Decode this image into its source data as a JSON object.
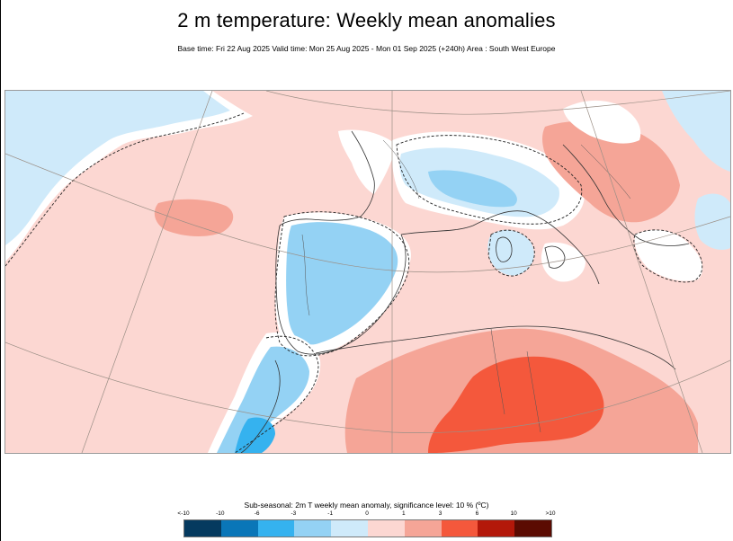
{
  "header": {
    "title": "2 m temperature: Weekly mean anomalies",
    "subtitle": "Base time: Fri 22 Aug 2025 Valid time: Mon 25 Aug 2025 - Mon 01 Sep 2025 (+240h) Area : South West Europe"
  },
  "legend": {
    "caption": "Sub-seasonal: 2m T weekly mean anomaly, significance level: 10 % (ºC)",
    "ticks": [
      "<-10",
      "-10",
      "-6",
      "-3",
      "-1",
      "0",
      "1",
      "3",
      "6",
      "10",
      ">10"
    ],
    "colors": [
      "#053a5f",
      "#0a76b8",
      "#35b2ef",
      "#94d2f4",
      "#cfeafa",
      "#fcd7d2",
      "#f5a597",
      "#f4583c",
      "#b3180a",
      "#5b0b02"
    ]
  },
  "map": {
    "area": "South West Europe",
    "palette": {
      "cold_light": "#cfeafa",
      "cold_mid": "#94d2f4",
      "cold_strong": "#35b2ef",
      "neutral": "#ffffff",
      "warm_light": "#fcd7d2",
      "warm_mid": "#f5a597",
      "warm_strong": "#f4583c"
    }
  }
}
